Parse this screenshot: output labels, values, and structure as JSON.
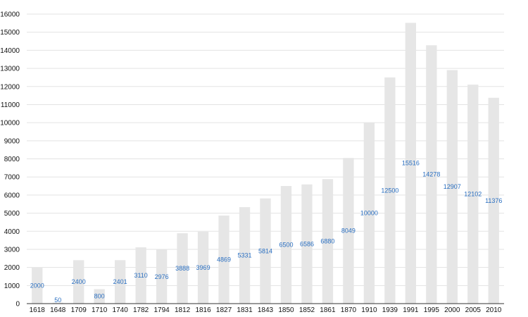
{
  "chart_data": {
    "type": "bar",
    "categories": [
      "1618",
      "1648",
      "1709",
      "1710",
      "1740",
      "1782",
      "1794",
      "1812",
      "1816",
      "1827",
      "1831",
      "1843",
      "1850",
      "1852",
      "1861",
      "1870",
      "1910",
      "1939",
      "1991",
      "1995",
      "2000",
      "2005",
      "2010"
    ],
    "values": [
      2000,
      50,
      2400,
      800,
      2401,
      3110,
      2976,
      3888,
      3969,
      4869,
      5331,
      5814,
      6500,
      6586,
      6880,
      8049,
      10000,
      12500,
      15516,
      14278,
      12907,
      12102,
      11376
    ],
    "ylim": [
      0,
      16000
    ],
    "yticks": [
      0,
      1000,
      2000,
      3000,
      4000,
      5000,
      6000,
      7000,
      8000,
      9000,
      10000,
      11000,
      12000,
      13000,
      14000,
      15000,
      16000
    ],
    "grid": true,
    "colors": {
      "bar": "#e6e6e6",
      "label": "#2a6fc1",
      "grid": "#e3e3e3",
      "axis": "#333333"
    }
  }
}
